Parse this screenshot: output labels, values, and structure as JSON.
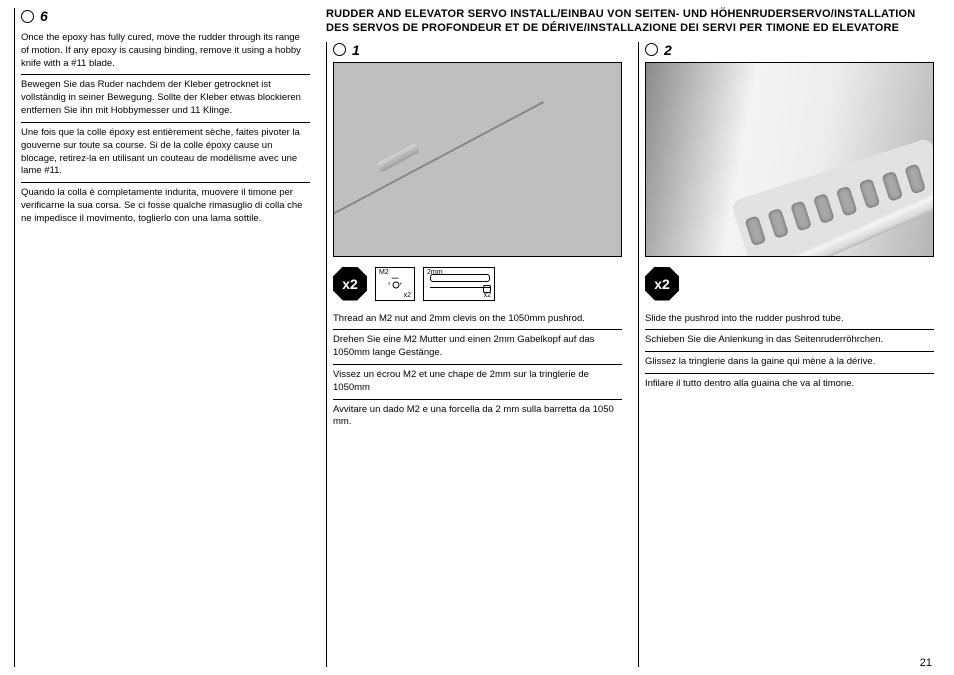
{
  "page_number": "21",
  "section_title": "RUDDER AND ELEVATOR SERVO INSTALL/EINBAU VON SEITEN- UND HÖHENRUDERSERVO/INSTALLATION DES SERVOS DE PROFONDEUR ET DE DÉRIVE/INSTALLAZIONE DEI SERVI PER TIMONE ED ELEVATORE",
  "left": {
    "step": "6",
    "en": "Once the epoxy has fully cured, move the rudder through its range of motion. If any epoxy is causing binding, remove it using a hobby knife with a #11 blade.",
    "de": "Bewegen Sie das Ruder nachdem der Kleber getrocknet ist vollständig in seiner Bewegung. Sollte der Kleber etwas blockieren entfernen Sie ihn mit Hobbymesser und 11 Klinge.",
    "fr": "Une fois que la colle époxy est entièrement sèche, faites pivoter la gouverne sur toute sa course. Si de la colle époxy cause un blocage, retirez-la en utilisant un couteau de modélisme avec une lame #11.",
    "it": "Quando la colla è completamente indurita, muovere il timone per verificarne la sua corsa. Se ci fosse qualche rimasuglio di colla che ne impedisce il movimento, toglierlo con una lama sottile."
  },
  "mid": {
    "step": "1",
    "qty": "x2",
    "part1_label": "M2",
    "part1_sub": "x2",
    "part2_label": "2mm",
    "part2_sub": "x2",
    "en": "Thread an M2 nut and 2mm clevis on the 1050mm pushrod.",
    "de": "Drehen Sie eine M2 Mutter und einen 2mm Gabelkopf auf das 1050mm lange Gestänge.",
    "fr": "Vissez un écrou M2 et une chape de 2mm sur la tringlerie de 1050mm",
    "it": "Avvitare un dado M2 e una forcella da 2 mm sulla barretta da 1050 mm."
  },
  "right": {
    "step": "2",
    "qty": "x2",
    "en": "Slide the pushrod into the rudder pushrod tube.",
    "de": "Schieben Sie die Anlenkung in das Seitenruderröhrchen.",
    "fr": "Glissez la tringlerie dans la gaine qui mène à la dérive.",
    "it": "Infilare il tutto dentro alla guaina che va al timone."
  }
}
